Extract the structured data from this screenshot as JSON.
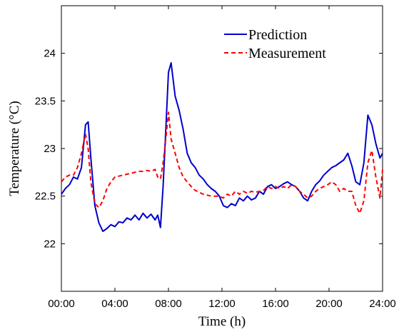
{
  "chart_data": {
    "type": "line",
    "xlabel": "Time (h)",
    "ylabel": "Temperature (°C)",
    "xlim": [
      0,
      24
    ],
    "ylim": [
      21.5,
      24.5
    ],
    "x_ticks": [
      0,
      4,
      8,
      12,
      16,
      20,
      24
    ],
    "x_tick_labels": [
      "00:00",
      "04:00",
      "08:00",
      "12:00",
      "16:00",
      "20:00",
      "24:00"
    ],
    "y_ticks": [
      22,
      22.5,
      23,
      23.5,
      24
    ],
    "y_tick_labels": [
      "22",
      "22.5",
      "23",
      "23.5",
      "24"
    ],
    "grid": false,
    "legend_position": "top-right",
    "series": [
      {
        "name": "Prediction",
        "color": "#0000cc",
        "style": "solid",
        "x": [
          0,
          0.3,
          0.6,
          0.9,
          1.2,
          1.5,
          1.8,
          2.0,
          2.2,
          2.5,
          2.8,
          3.1,
          3.4,
          3.7,
          4.0,
          4.3,
          4.6,
          4.9,
          5.2,
          5.5,
          5.8,
          6.1,
          6.4,
          6.7,
          7.0,
          7.2,
          7.4,
          7.6,
          7.8,
          8.0,
          8.2,
          8.5,
          8.8,
          9.1,
          9.4,
          9.7,
          10.0,
          10.3,
          10.6,
          10.9,
          11.2,
          11.5,
          11.8,
          12.1,
          12.4,
          12.7,
          13.0,
          13.3,
          13.6,
          13.9,
          14.2,
          14.5,
          14.8,
          15.1,
          15.4,
          15.7,
          16.0,
          16.3,
          16.6,
          16.9,
          17.2,
          17.5,
          17.8,
          18.1,
          18.4,
          18.7,
          19.0,
          19.3,
          19.6,
          19.9,
          20.2,
          20.5,
          20.8,
          21.1,
          21.4,
          21.7,
          22.0,
          22.3,
          22.6,
          22.9,
          23.2,
          23.5,
          23.8,
          24.0
        ],
        "y": [
          22.52,
          22.58,
          22.62,
          22.7,
          22.68,
          22.8,
          23.25,
          23.28,
          22.9,
          22.4,
          22.22,
          22.13,
          22.16,
          22.2,
          22.18,
          22.23,
          22.22,
          22.27,
          22.25,
          22.3,
          22.25,
          22.32,
          22.27,
          22.31,
          22.25,
          22.3,
          22.17,
          22.6,
          23.2,
          23.8,
          23.9,
          23.55,
          23.4,
          23.2,
          22.95,
          22.85,
          22.8,
          22.72,
          22.68,
          22.62,
          22.58,
          22.55,
          22.5,
          22.4,
          22.38,
          22.42,
          22.4,
          22.48,
          22.45,
          22.5,
          22.46,
          22.48,
          22.55,
          22.52,
          22.6,
          22.62,
          22.58,
          22.6,
          22.63,
          22.65,
          22.62,
          22.6,
          22.55,
          22.48,
          22.45,
          22.55,
          22.62,
          22.66,
          22.72,
          22.76,
          22.8,
          22.82,
          22.85,
          22.88,
          22.95,
          22.82,
          22.65,
          22.62,
          22.85,
          23.35,
          23.25,
          23.05,
          22.9,
          22.95
        ]
      },
      {
        "name": "Measurement",
        "color": "#ff0000",
        "style": "dashed",
        "x": [
          0,
          0.3,
          0.6,
          0.9,
          1.2,
          1.5,
          1.8,
          2.0,
          2.2,
          2.5,
          2.8,
          3.1,
          3.4,
          3.7,
          4.0,
          4.3,
          4.6,
          4.9,
          5.2,
          5.5,
          5.8,
          6.1,
          6.4,
          6.7,
          7.0,
          7.2,
          7.4,
          7.6,
          7.8,
          8.0,
          8.2,
          8.5,
          8.8,
          9.1,
          9.4,
          9.7,
          10.0,
          10.3,
          10.6,
          10.9,
          11.2,
          11.5,
          11.8,
          12.1,
          12.4,
          12.7,
          13.0,
          13.3,
          13.6,
          13.9,
          14.2,
          14.5,
          14.8,
          15.1,
          15.4,
          15.7,
          16.0,
          16.3,
          16.6,
          16.9,
          17.2,
          17.5,
          17.8,
          18.1,
          18.4,
          18.7,
          19.0,
          19.3,
          19.6,
          19.9,
          20.2,
          20.5,
          20.8,
          21.1,
          21.4,
          21.7,
          22.0,
          22.3,
          22.6,
          22.9,
          23.2,
          23.5,
          23.8,
          24.0
        ],
        "y": [
          22.65,
          22.7,
          22.72,
          22.72,
          22.8,
          22.95,
          23.15,
          23.0,
          22.65,
          22.42,
          22.38,
          22.45,
          22.58,
          22.65,
          22.7,
          22.71,
          22.72,
          22.73,
          22.74,
          22.75,
          22.76,
          22.76,
          22.77,
          22.76,
          22.78,
          22.7,
          22.68,
          22.85,
          23.1,
          23.38,
          23.1,
          22.95,
          22.8,
          22.7,
          22.65,
          22.6,
          22.56,
          22.54,
          22.52,
          22.51,
          22.5,
          22.5,
          22.5,
          22.48,
          22.52,
          22.5,
          22.55,
          22.52,
          22.55,
          22.53,
          22.55,
          22.54,
          22.55,
          22.56,
          22.6,
          22.58,
          22.6,
          22.58,
          22.6,
          22.58,
          22.62,
          22.6,
          22.55,
          22.52,
          22.48,
          22.5,
          22.55,
          22.58,
          22.6,
          22.62,
          22.65,
          22.62,
          22.55,
          22.58,
          22.55,
          22.55,
          22.4,
          22.32,
          22.45,
          22.85,
          22.98,
          22.7,
          22.48,
          22.78
        ]
      }
    ]
  }
}
